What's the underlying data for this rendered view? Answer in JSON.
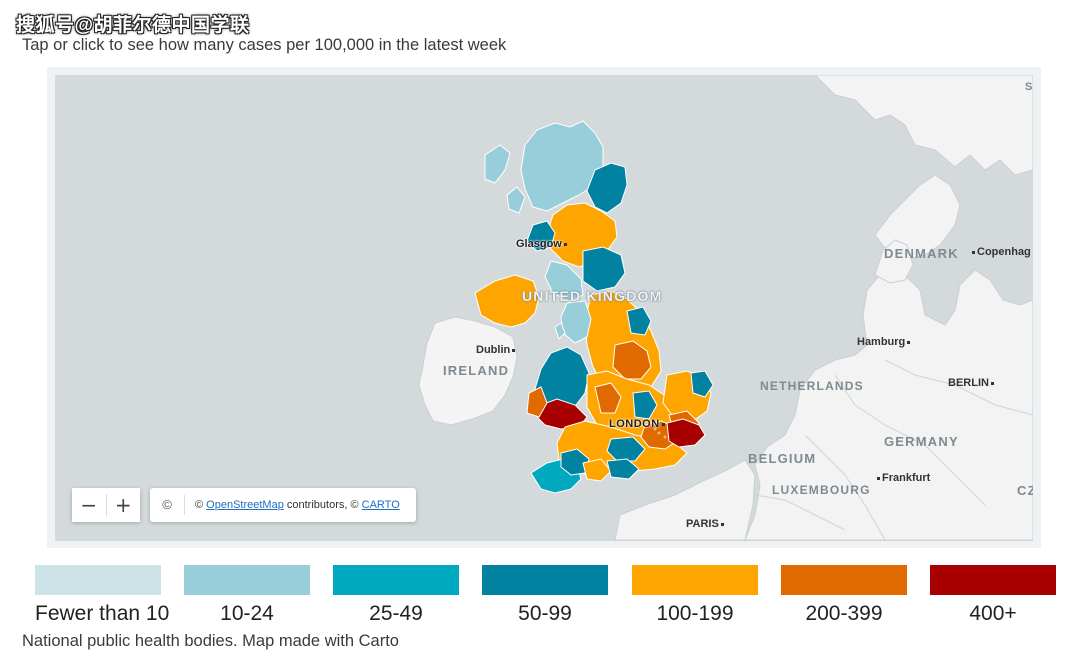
{
  "watermark": "搜狐号@胡菲尔德中国学联",
  "subtitle": "Tap or click to see how many cases per 100,000 in the latest week",
  "map": {
    "country_labels": {
      "uk": "UNITED KINGDOM",
      "ireland": "IRELAND",
      "denmark": "DENMARK",
      "netherlands": "NETHERLANDS",
      "germany": "GERMANY",
      "belgium": "BELGIUM",
      "luxembourg": "LUXEMBOURG",
      "cz": "CZ",
      "edge_s": "S"
    },
    "city_labels": {
      "glasgow": "Glasgow",
      "dublin": "Dublin",
      "london": "LONDON",
      "hamburg": "Hamburg",
      "berlin": "BERLIN",
      "copenhagen": "Copenhag",
      "frankfurt": "Frankfurt",
      "paris": "PARIS"
    },
    "zoom_out_label": "−",
    "zoom_in_label": "+",
    "attribution": {
      "copy_symbol": "©",
      "prefix": "©",
      "osm_link": "OpenStreetMap",
      "middle": "contributors, ©",
      "carto_link": "CARTO"
    }
  },
  "legend": [
    {
      "label": "Fewer than 10",
      "color": "#cce3e8"
    },
    {
      "label": "10-24",
      "color": "#98cdda"
    },
    {
      "label": "25-49",
      "color": "#00a8c0"
    },
    {
      "label": "50-99",
      "color": "#0082a0"
    },
    {
      "label": "100-199",
      "color": "#ffa500"
    },
    {
      "label": "200-399",
      "color": "#e06a00"
    },
    {
      "label": "400+",
      "color": "#a80000"
    }
  ],
  "source": "National public health bodies. Map made with Carto"
}
